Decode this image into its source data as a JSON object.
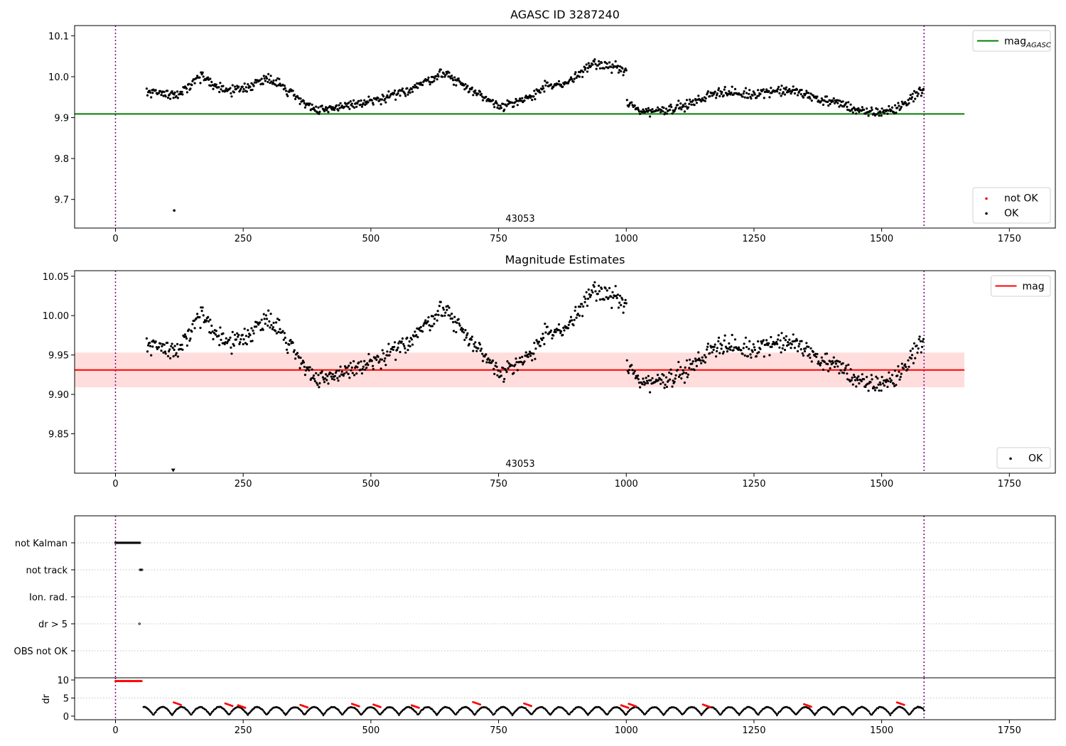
{
  "chart_data": [
    {
      "id": "agasc",
      "type": "scatter",
      "title": "AGASC ID 3287240",
      "xlim": [
        -80,
        1840
      ],
      "ylim": [
        9.63,
        10.125
      ],
      "xticks": [
        0,
        250,
        500,
        750,
        1000,
        1250,
        1500,
        1750
      ],
      "yticks": [
        9.7,
        9.8,
        9.9,
        10.0,
        10.1
      ],
      "ytick_labels": [
        "9.7",
        "9.8",
        "9.9",
        "10.0",
        "10.1"
      ],
      "obs_boundaries": [
        0,
        1583
      ],
      "obsid_label": "43053",
      "hline": {
        "y": 9.909,
        "x": [
          -80,
          1662
        ],
        "color": "#008000",
        "name": "mag",
        "name_sub": "AGASC"
      },
      "series": [
        {
          "name": "not OK",
          "color": "#ff0000",
          "points": []
        },
        {
          "name": "OK",
          "color": "#000000",
          "points": [
            [
              115,
              9.673
            ]
          ]
        }
      ],
      "segments": [
        [
          [
            60,
            9.965
          ],
          [
            120,
            9.955
          ],
          [
            170,
            10.0
          ],
          [
            215,
            9.965
          ],
          [
            260,
            9.975
          ],
          [
            300,
            10.0
          ],
          [
            350,
            9.955
          ],
          [
            395,
            9.915
          ],
          [
            450,
            9.93
          ],
          [
            510,
            9.94
          ],
          [
            560,
            9.96
          ],
          [
            610,
            9.99
          ],
          [
            640,
            10.01
          ],
          [
            700,
            9.965
          ],
          [
            750,
            9.93
          ],
          [
            790,
            9.935
          ],
          [
            840,
            9.975
          ],
          [
            880,
            9.98
          ],
          [
            930,
            10.03
          ],
          [
            980,
            10.025
          ],
          [
            1000,
            10.01
          ]
        ],
        [
          [
            995,
            9.94
          ],
          [
            1030,
            9.915
          ],
          [
            1080,
            9.92
          ],
          [
            1130,
            9.935
          ],
          [
            1180,
            9.965
          ],
          [
            1230,
            9.955
          ],
          [
            1280,
            9.965
          ],
          [
            1330,
            9.965
          ],
          [
            1380,
            9.945
          ],
          [
            1430,
            9.93
          ],
          [
            1470,
            9.91
          ],
          [
            1530,
            9.92
          ],
          [
            1560,
            9.95
          ],
          [
            1583,
            9.97
          ]
        ]
      ],
      "legends": [
        {
          "corner": "top-right",
          "items": [
            {
              "kind": "line",
              "label": "mag",
              "sub": "AGASC",
              "color": "#008000"
            }
          ]
        },
        {
          "corner": "bottom-right",
          "items": [
            {
              "kind": "dot",
              "label": "not OK",
              "color": "#ff0000"
            },
            {
              "kind": "dot",
              "label": "OK",
              "color": "#000000"
            }
          ]
        }
      ]
    },
    {
      "id": "mag",
      "type": "scatter",
      "title": "Magnitude Estimates",
      "xlim": [
        -80,
        1840
      ],
      "ylim": [
        9.8,
        10.057
      ],
      "xticks": [
        0,
        250,
        500,
        750,
        1000,
        1250,
        1500,
        1750
      ],
      "yticks": [
        9.85,
        9.9,
        9.95,
        10.0,
        10.05
      ],
      "ytick_labels": [
        "9.85",
        "9.90",
        "9.95",
        "10.00",
        "10.05"
      ],
      "obs_boundaries": [
        0,
        1583
      ],
      "obsid_label": "43053",
      "hline": {
        "y": 9.931,
        "x": [
          -80,
          1662
        ],
        "color": "#ff0000",
        "name": "mag"
      },
      "band": {
        "y": [
          9.909,
          9.953
        ],
        "color": "#ffdddd"
      },
      "markers": [
        {
          "x": 113,
          "y": 9.803,
          "shape": "triangle-down"
        }
      ],
      "segments": [
        [
          [
            60,
            9.965
          ],
          [
            120,
            9.955
          ],
          [
            170,
            10.0
          ],
          [
            215,
            9.965
          ],
          [
            260,
            9.975
          ],
          [
            300,
            10.0
          ],
          [
            350,
            9.955
          ],
          [
            395,
            9.915
          ],
          [
            450,
            9.93
          ],
          [
            510,
            9.94
          ],
          [
            560,
            9.96
          ],
          [
            610,
            9.99
          ],
          [
            640,
            10.01
          ],
          [
            700,
            9.965
          ],
          [
            750,
            9.93
          ],
          [
            790,
            9.935
          ],
          [
            840,
            9.975
          ],
          [
            880,
            9.98
          ],
          [
            930,
            10.03
          ],
          [
            980,
            10.025
          ],
          [
            1000,
            10.01
          ]
        ],
        [
          [
            995,
            9.94
          ],
          [
            1030,
            9.915
          ],
          [
            1080,
            9.92
          ],
          [
            1130,
            9.935
          ],
          [
            1180,
            9.965
          ],
          [
            1230,
            9.955
          ],
          [
            1280,
            9.965
          ],
          [
            1330,
            9.965
          ],
          [
            1380,
            9.945
          ],
          [
            1430,
            9.93
          ],
          [
            1470,
            9.91
          ],
          [
            1530,
            9.92
          ],
          [
            1560,
            9.95
          ],
          [
            1583,
            9.97
          ]
        ]
      ],
      "legends": [
        {
          "corner": "top-right",
          "items": [
            {
              "kind": "line",
              "label": "mag",
              "color": "#ff0000"
            }
          ]
        },
        {
          "corner": "bottom-right",
          "items": [
            {
              "kind": "dot",
              "label": "OK",
              "color": "#000000"
            }
          ]
        }
      ]
    },
    {
      "id": "flags",
      "type": "scatter",
      "xlim": [
        -80,
        1840
      ],
      "categories": [
        "not Kalman",
        "not track",
        "Ion. rad.",
        "dr > 5",
        "OBS not OK"
      ],
      "obs_boundaries": [
        0,
        1583
      ],
      "flag_ranges": [
        {
          "category": "not Kalman",
          "x": [
            0,
            48
          ]
        },
        {
          "category": "not track",
          "x": [
            48,
            52
          ]
        },
        {
          "category": "dr > 5",
          "x": [
            47,
            48
          ]
        }
      ]
    },
    {
      "id": "dr",
      "type": "scatter",
      "ylabel": "dr",
      "xlim": [
        -80,
        1840
      ],
      "ylim": [
        -1,
        10.6
      ],
      "xticks": [
        0,
        250,
        500,
        750,
        1000,
        1250,
        1500,
        1750
      ],
      "yticks": [
        0,
        5,
        10
      ],
      "ytick_labels": [
        "0",
        "5",
        "10"
      ],
      "obs_boundaries": [
        0,
        1583
      ],
      "high_range": {
        "x": [
          0,
          52
        ],
        "y": 9.7,
        "color": "#ff0000"
      },
      "red_clusters": [
        [
          114,
          3.8
        ],
        [
          215,
          3.5
        ],
        [
          240,
          3.0
        ],
        [
          362,
          3.1
        ],
        [
          463,
          3.4
        ],
        [
          505,
          3.2
        ],
        [
          580,
          3.0
        ],
        [
          700,
          3.9
        ],
        [
          800,
          3.5
        ],
        [
          990,
          3.0
        ],
        [
          1005,
          3.4
        ],
        [
          1150,
          3.2
        ],
        [
          1348,
          3.3
        ],
        [
          1530,
          3.8
        ]
      ]
    }
  ]
}
